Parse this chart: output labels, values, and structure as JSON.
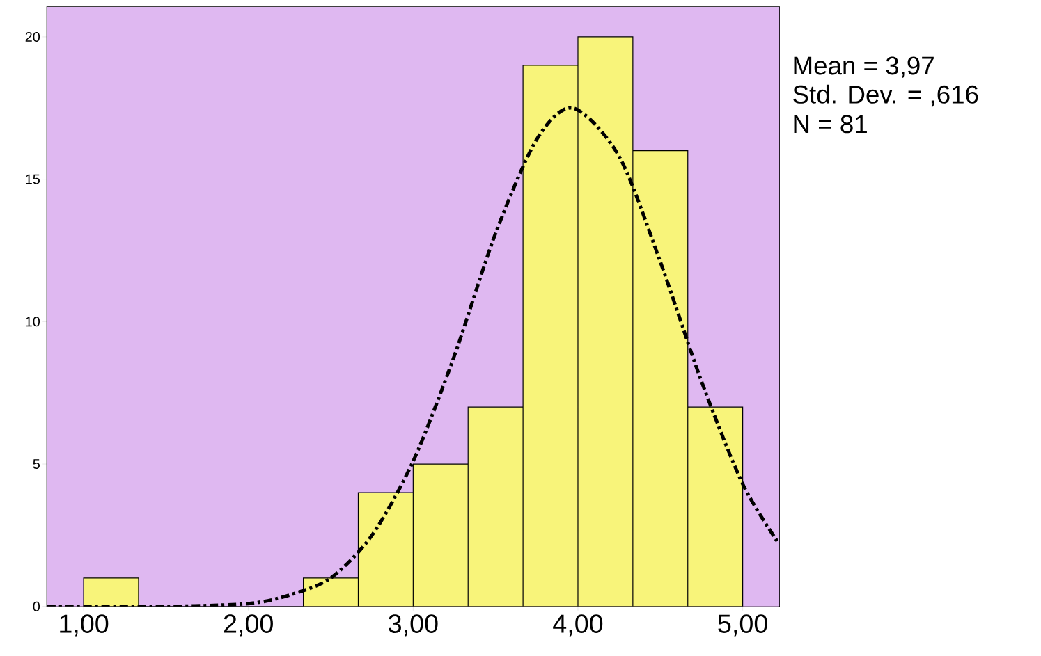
{
  "chart_data": {
    "type": "histogram",
    "series": [
      {
        "color": "#f8f47a",
        "bins": [
          1.0,
          1.3333,
          1.6667,
          2.0,
          2.3333,
          2.6667,
          3.0,
          3.3333,
          3.6667,
          4.0,
          4.3333,
          4.6667,
          5.0
        ],
        "values": [
          1,
          0,
          0,
          0,
          1,
          4,
          5,
          7,
          19,
          20,
          16,
          7
        ]
      },
      {
        "type": "line",
        "color": "#000000",
        "line_style": "dashed",
        "x": [
          0.78,
          1.5,
          2.0,
          2.25,
          2.5,
          2.75,
          3.0,
          3.25,
          3.5,
          3.75,
          3.97,
          4.25,
          4.5,
          4.75,
          5.0,
          5.22
        ],
        "values": [
          0,
          0,
          0.1,
          0.4,
          1.0,
          2.5,
          5.1,
          8.8,
          13.1,
          16.4,
          17.5,
          15.8,
          12.1,
          7.9,
          4.3,
          2.2
        ]
      }
    ],
    "xlim": [
      0.777,
      5.223
    ],
    "ylim": [
      0,
      21.05
    ],
    "xticks": [
      {
        "value": 1,
        "label": "1,00"
      },
      {
        "value": 2,
        "label": "2,00"
      },
      {
        "value": 3,
        "label": "3,00"
      },
      {
        "value": 4,
        "label": "4,00"
      },
      {
        "value": 5,
        "label": "5,00"
      }
    ],
    "yticks": [
      0,
      5,
      10,
      15,
      20
    ],
    "annotations": [
      "Mean = 3,97",
      "Std. Dev. = ,616",
      "N = 81"
    ]
  }
}
